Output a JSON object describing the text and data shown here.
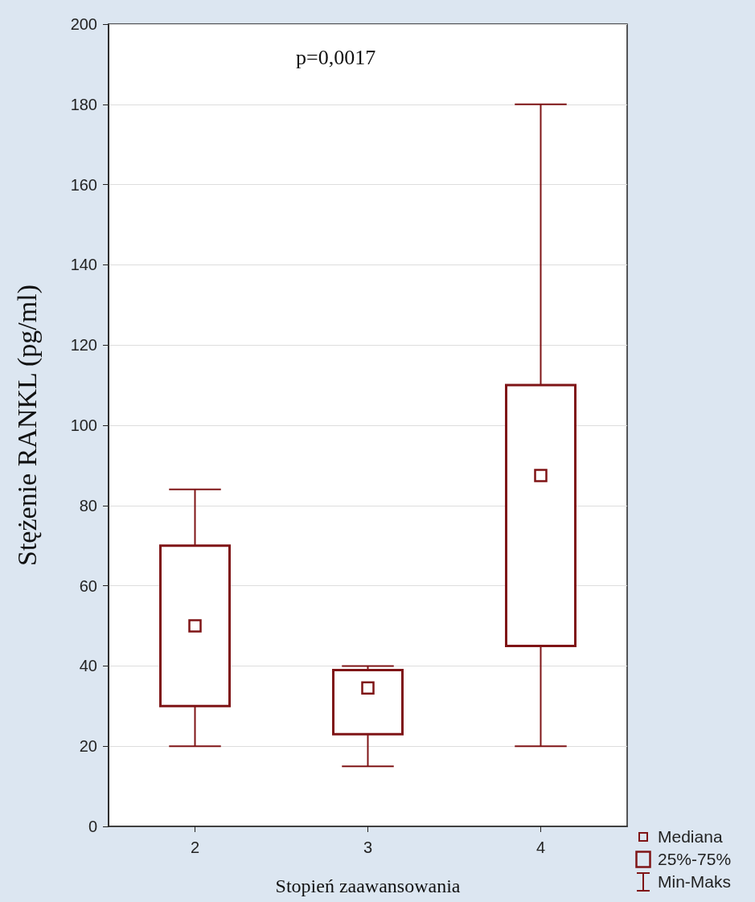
{
  "chart_data": {
    "type": "box",
    "ylabel": "Stężenie RANKL (pg/ml)",
    "xlabel": "Stopień zaawansowania",
    "categories": [
      "2",
      "3",
      "4"
    ],
    "color": "#7f1416",
    "boxes": [
      {
        "low": 20,
        "q1": 30,
        "median": 50,
        "q3": 70,
        "high": 84
      },
      {
        "low": 15,
        "q1": 23,
        "median": 34.5,
        "q3": 39,
        "high": 40
      },
      {
        "low": 20,
        "q1": 45,
        "median": 87.5,
        "q3": 110,
        "high": 180
      }
    ],
    "ylim": [
      0,
      200
    ],
    "yticks": [
      0,
      20,
      40,
      60,
      80,
      100,
      120,
      140,
      160,
      180,
      200
    ],
    "grid": "y",
    "annotations": [
      "p=0,0017",
      "Mediana",
      "25%-75%",
      "Min-Maks"
    ]
  }
}
